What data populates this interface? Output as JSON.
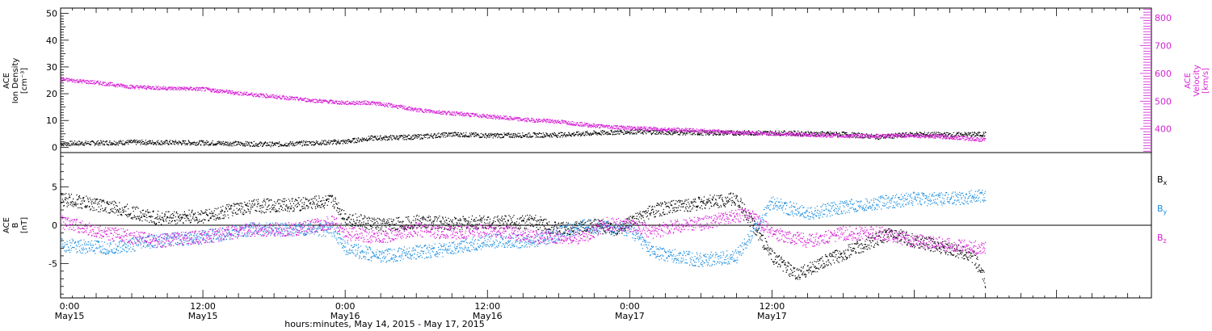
{
  "chart_data": [
    {
      "type": "scatter",
      "panel": "top",
      "left_axis": {
        "title_lines": [
          "ACE",
          "Ion Density",
          "[cm⁻³]"
        ],
        "ylim": [
          -2,
          52
        ],
        "ticks": [
          0,
          10,
          20,
          30,
          40,
          50
        ],
        "color": "#000000"
      },
      "right_axis": {
        "title_lines": [
          "ACE",
          "Velocity",
          "[km/s]"
        ],
        "ylim": [
          315,
          835
        ],
        "ticks": [
          400,
          500,
          600,
          700,
          800
        ],
        "color": "#d61fd6"
      },
      "series": [
        {
          "axis": "left",
          "color": "#000000",
          "points": [
            [
              0,
              1.5
            ],
            [
              6,
              2
            ],
            [
              12,
              1.8
            ],
            [
              18,
              1.2
            ],
            [
              24,
              2.2
            ],
            [
              26,
              3.5
            ],
            [
              30,
              4
            ],
            [
              33,
              5
            ],
            [
              36,
              4.5
            ],
            [
              42,
              4.8
            ],
            [
              48,
              6
            ],
            [
              54,
              5.5
            ],
            [
              60,
              5.5
            ],
            [
              66,
              5
            ],
            [
              69,
              4
            ],
            [
              72,
              5
            ],
            [
              75,
              4.8
            ],
            [
              78,
              5
            ]
          ]
        },
        {
          "axis": "right",
          "color": "#d61fd6",
          "points": [
            [
              0,
              580
            ],
            [
              3,
              568
            ],
            [
              6,
              553
            ],
            [
              9,
              548
            ],
            [
              12,
              545
            ],
            [
              15,
              530
            ],
            [
              18,
              518
            ],
            [
              21,
              505
            ],
            [
              24,
              495
            ],
            [
              26,
              496
            ],
            [
              28,
              485
            ],
            [
              30,
              470
            ],
            [
              33,
              458
            ],
            [
              36,
              447
            ],
            [
              39,
              435
            ],
            [
              42,
              428
            ],
            [
              45,
              413
            ],
            [
              48,
              405
            ],
            [
              51,
              400
            ],
            [
              54,
              395
            ],
            [
              57,
              389
            ],
            [
              60,
              385
            ],
            [
              63,
              380
            ],
            [
              66,
              376
            ],
            [
              69,
              376
            ],
            [
              72,
              378
            ],
            [
              75,
              372
            ],
            [
              78,
              362
            ]
          ]
        }
      ]
    },
    {
      "type": "scatter",
      "panel": "bottom",
      "axis": {
        "title_lines": [
          "ACE",
          "B",
          "[nT]"
        ],
        "ylim": [
          -9.5,
          9.5
        ],
        "ticks": [
          -5,
          0,
          5
        ],
        "zero_line": true
      },
      "legend": {
        "placement": "right",
        "entries": [
          {
            "label": "Bx",
            "base": "B",
            "sub": "x",
            "color": "#000000"
          },
          {
            "label": "By",
            "base": "B",
            "sub": "y",
            "color": "#1d8fe0"
          },
          {
            "label": "Bz",
            "base": "B",
            "sub": "z",
            "color": "#d61fd6"
          }
        ]
      },
      "series": [
        {
          "name": "Bx",
          "color": "#000000",
          "points": [
            [
              0,
              3.5
            ],
            [
              4,
              2.5
            ],
            [
              8,
              1
            ],
            [
              12,
              1.2
            ],
            [
              16,
              2.5
            ],
            [
              20,
              2.8
            ],
            [
              23,
              3.2
            ],
            [
              24,
              1
            ],
            [
              27,
              0
            ],
            [
              30,
              0.5
            ],
            [
              33,
              0.3
            ],
            [
              36,
              0.5
            ],
            [
              40,
              0.5
            ],
            [
              42,
              -0.5
            ],
            [
              45,
              0
            ],
            [
              47,
              -0.5
            ],
            [
              50,
              2
            ],
            [
              54,
              3
            ],
            [
              57,
              3.5
            ],
            [
              60,
              -4
            ],
            [
              62,
              -6.5
            ],
            [
              64,
              -5
            ],
            [
              67,
              -3
            ],
            [
              70,
              -1
            ],
            [
              72,
              -2
            ],
            [
              75,
              -3
            ],
            [
              77,
              -4
            ],
            [
              78,
              -7.5
            ]
          ]
        },
        {
          "name": "By",
          "color": "#1d8fe0",
          "points": [
            [
              0,
              -2.5
            ],
            [
              4,
              -3
            ],
            [
              8,
              -2
            ],
            [
              12,
              -1.5
            ],
            [
              16,
              -0.5
            ],
            [
              20,
              -0.5
            ],
            [
              23,
              -0.5
            ],
            [
              24,
              -3
            ],
            [
              27,
              -4
            ],
            [
              30,
              -3.5
            ],
            [
              33,
              -3
            ],
            [
              36,
              -2
            ],
            [
              40,
              -2
            ],
            [
              44,
              0
            ],
            [
              48,
              -0.5
            ],
            [
              50,
              -3.5
            ],
            [
              54,
              -4.5
            ],
            [
              57,
              -4
            ],
            [
              60,
              3
            ],
            [
              63,
              1.5
            ],
            [
              66,
              2.5
            ],
            [
              69,
              3
            ],
            [
              72,
              3.5
            ],
            [
              75,
              3.5
            ],
            [
              78,
              4
            ]
          ]
        },
        {
          "name": "Bz",
          "color": "#d61fd6",
          "points": [
            [
              0,
              0.5
            ],
            [
              4,
              -1
            ],
            [
              8,
              -2
            ],
            [
              12,
              -1.5
            ],
            [
              16,
              -0.5
            ],
            [
              20,
              -0.5
            ],
            [
              23,
              0.5
            ],
            [
              24,
              -1
            ],
            [
              27,
              -1.5
            ],
            [
              30,
              -0.5
            ],
            [
              33,
              -1
            ],
            [
              36,
              -0.5
            ],
            [
              40,
              -1.5
            ],
            [
              44,
              -1.5
            ],
            [
              46,
              0.2
            ],
            [
              48,
              0
            ],
            [
              50,
              -0.8
            ],
            [
              52,
              0
            ],
            [
              54,
              0.3
            ],
            [
              56,
              1
            ],
            [
              58,
              1.5
            ],
            [
              60,
              -1
            ],
            [
              63,
              -2
            ],
            [
              66,
              -1
            ],
            [
              69,
              -1
            ],
            [
              72,
              -2
            ],
            [
              75,
              -2.5
            ],
            [
              78,
              -3
            ]
          ]
        }
      ]
    }
  ],
  "x_axis": {
    "xlim": [
      0,
      92
    ],
    "ticks": [
      {
        "x": 0,
        "time": "0:00",
        "date": "May15"
      },
      {
        "x": 12,
        "time": "12:00",
        "date": "May15"
      },
      {
        "x": 24,
        "time": "0:00",
        "date": "May16"
      },
      {
        "x": 36,
        "time": "12:00",
        "date": "May16"
      },
      {
        "x": 48,
        "time": "0:00",
        "date": "May17"
      },
      {
        "x": 60,
        "time": "12:00",
        "date": "May17"
      }
    ],
    "title": "hours:minutes, May 14, 2015 - May 17, 2015"
  }
}
